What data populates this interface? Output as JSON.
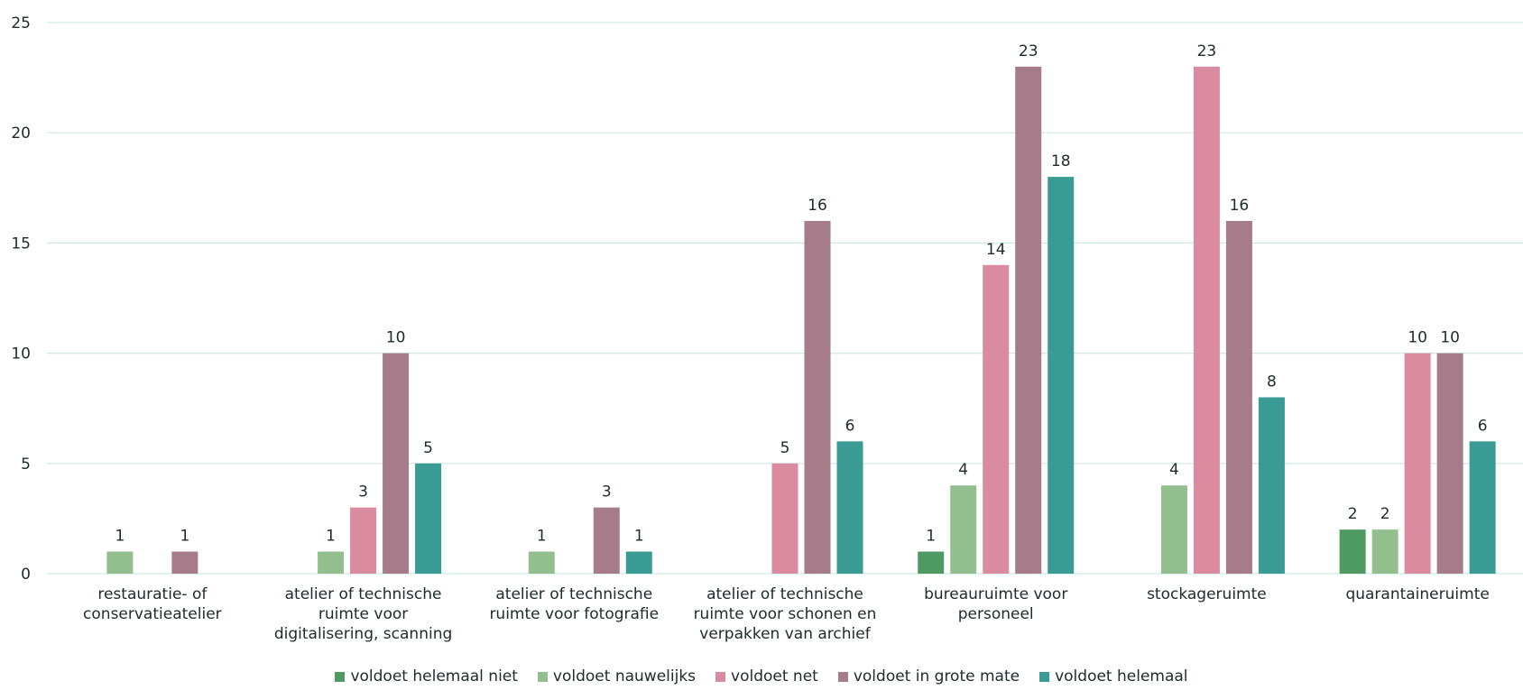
{
  "chart_data": {
    "type": "bar",
    "categories": [
      "restauratie- of\nconservatieatelier",
      "atelier of technische\nruimte voor\ndigitalisering, scanning",
      "atelier of technische\nruimte voor fotografie",
      "atelier of technische\nruimte voor schonen en\nverpakken van archief",
      "bureauruimte voor\npersoneel",
      "stockageruimte",
      "quarantaineruimte"
    ],
    "series": [
      {
        "name": "voldoet helemaal niet",
        "color": "#4e9a62",
        "values": [
          null,
          null,
          null,
          null,
          1,
          null,
          2
        ]
      },
      {
        "name": "voldoet nauwelijks",
        "color": "#93bf8f",
        "values": [
          1,
          1,
          1,
          null,
          4,
          4,
          2
        ]
      },
      {
        "name": "voldoet net",
        "color": "#db8b9f",
        "values": [
          null,
          3,
          null,
          5,
          14,
          23,
          10
        ]
      },
      {
        "name": "voldoet in grote mate",
        "color": "#a67b8a",
        "values": [
          1,
          10,
          3,
          16,
          23,
          16,
          10
        ]
      },
      {
        "name": "voldoet helemaal",
        "color": "#3a9b94",
        "values": [
          null,
          5,
          1,
          6,
          18,
          8,
          6
        ]
      }
    ],
    "ylim": [
      0,
      25
    ],
    "yticks": [
      0,
      5,
      10,
      15,
      20,
      25
    ],
    "grid": true,
    "legend": "bottom"
  }
}
